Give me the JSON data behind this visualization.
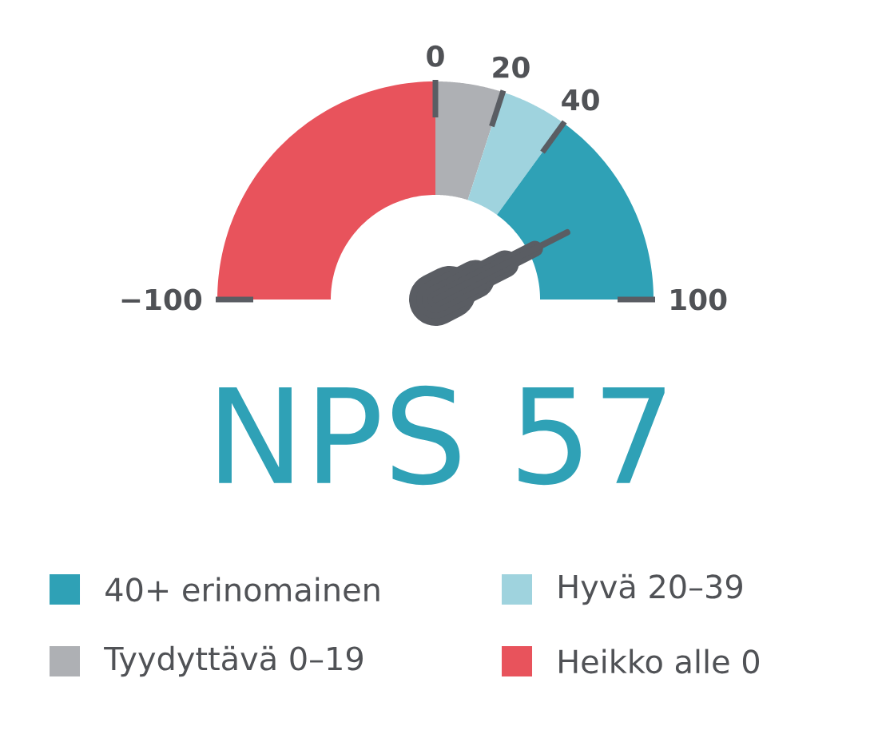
{
  "chart_data": {
    "type": "donut",
    "title": "NPS 57",
    "categories": [
      "Heikko alle 0",
      "Tyydyttävä 0–19",
      "Hyvä 20–39",
      "40+ erinomainen"
    ],
    "values": [
      50,
      10,
      10,
      30
    ],
    "colors": [
      "#e8535c",
      "#aeb0b4",
      "#9fd3de",
      "#2fa1b6"
    ],
    "needle": "40+ erinomainen",
    "annotations": [
      "−100",
      "0",
      "20",
      "40",
      "100"
    ],
    "legend": "bottom"
  }
}
